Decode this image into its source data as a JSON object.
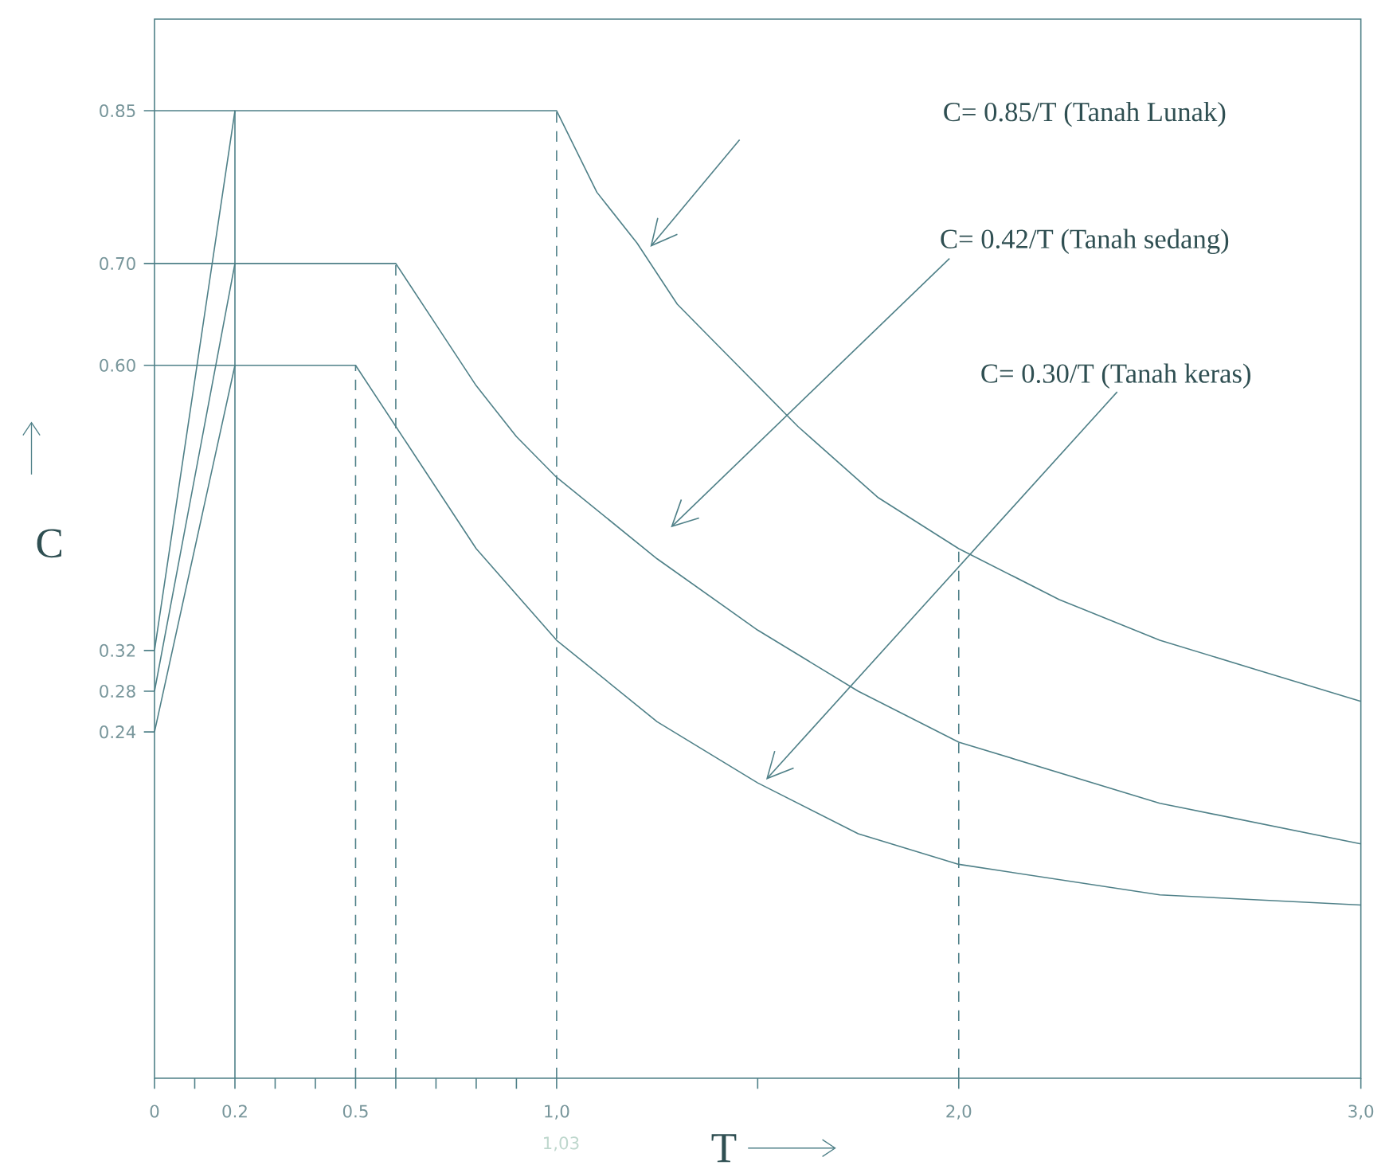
{
  "chart_data": {
    "type": "line",
    "xlabel": "T",
    "ylabel": "C",
    "xlim": [
      0,
      3
    ],
    "ylim": [
      -0.1,
      0.94
    ],
    "marker": "none",
    "xticks": [
      0,
      {
        "value": 0.1,
        "label": null
      },
      0.2,
      {
        "value": 0.3,
        "label": null
      },
      {
        "value": 0.4,
        "label": null
      },
      0.5,
      {
        "value": 0.6,
        "label": null
      },
      {
        "value": 0.7,
        "label": null
      },
      {
        "value": 0.8,
        "label": null
      },
      {
        "value": 0.9,
        "label": null
      },
      {
        "value": 1.0,
        "label": "1,0"
      },
      {
        "value": 1.5,
        "label": null
      },
      {
        "value": 2.0,
        "label": "2,0"
      },
      {
        "value": 3.0,
        "label": "3,0"
      }
    ],
    "yticks": [
      0.24,
      0.28,
      0.32,
      {
        "value": 0.6,
        "label": "0.60"
      },
      {
        "value": 0.7,
        "label": "0.70"
      },
      0.85
    ],
    "series": [
      {
        "color": "#4f8088",
        "x": [
          0,
          0.2,
          1.0,
          1.1,
          1.2,
          1.3,
          1.4,
          1.6,
          1.8,
          2.0,
          2.25,
          2.5,
          2.75,
          3.0
        ],
        "values": [
          0.32,
          0.85,
          0.85,
          0.77,
          0.72,
          0.66,
          0.62,
          0.54,
          0.47,
          0.42,
          0.37,
          0.33,
          0.3,
          0.27
        ]
      },
      {
        "color": "#4f8088",
        "x": [
          0,
          0.2,
          0.6,
          0.7,
          0.8,
          0.9,
          1.0,
          1.25,
          1.5,
          1.75,
          2.0,
          2.5,
          3.0
        ],
        "values": [
          0.28,
          0.7,
          0.7,
          0.64,
          0.58,
          0.53,
          0.49,
          0.41,
          0.34,
          0.28,
          0.23,
          0.17,
          0.13
        ]
      },
      {
        "color": "#4f8088",
        "x": [
          0,
          0.2,
          0.5,
          0.6,
          0.7,
          0.8,
          1.0,
          1.25,
          1.5,
          1.75,
          2.0,
          2.5,
          3.0
        ],
        "values": [
          0.24,
          0.6,
          0.6,
          0.54,
          0.48,
          0.42,
          0.33,
          0.25,
          0.19,
          0.14,
          0.11,
          0.08,
          0.07
        ]
      },
      {
        "color": "#4f8088",
        "x": [
          0,
          0.2
        ],
        "values": [
          0.85,
          0.85
        ]
      },
      {
        "color": "#4f8088",
        "x": [
          0,
          0.2
        ],
        "values": [
          0.7,
          0.7
        ]
      },
      {
        "color": "#4f8088",
        "x": [
          0,
          0.2
        ],
        "values": [
          0.6,
          0.6
        ]
      }
    ],
    "ref_lines": [
      {
        "axis": "x",
        "value": 0.2,
        "line_style": "solid",
        "color": "#4f8088"
      },
      {
        "axis": "x",
        "value": 0.5,
        "line_style": "dashed",
        "color": "#4f8088"
      },
      {
        "axis": "x",
        "value": 0.6,
        "line_style": "dashed",
        "color": "#4f8088"
      },
      {
        "axis": "x",
        "value": 1.0,
        "line_style": "dashed",
        "color": "#4f8088"
      },
      {
        "axis": "x",
        "value": 2.0,
        "line_style": "dashed",
        "color": "#4f8088"
      }
    ],
    "annotations": [
      "C= 0.85/T (Tanah Lunak)",
      "C= 0.42/T (Tanah sedang)",
      "C= 0.30/T (Tanah keras)",
      "1,03"
    ]
  }
}
